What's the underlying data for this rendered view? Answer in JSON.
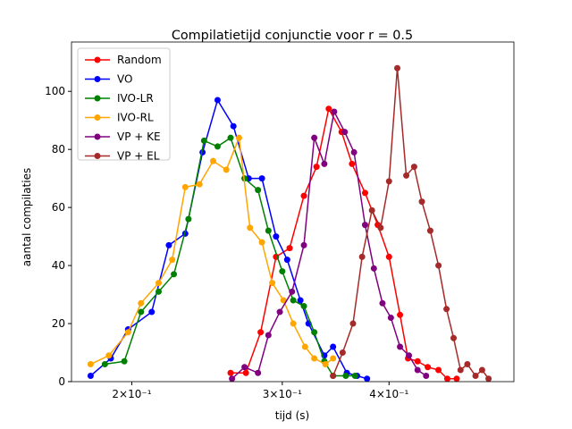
{
  "chart_data": {
    "type": "line",
    "title": "Compilatietijd conjunctie voor r = 0.5",
    "x_label": "tijd (s)",
    "y_label": "aantal compilaties",
    "xscale": "log",
    "xlim": [
      0.17,
      0.56
    ],
    "ylim": [
      0,
      117
    ],
    "xticks": [
      {
        "value": 0.2,
        "label": "2×10⁻¹"
      },
      {
        "value": 0.3,
        "label": "3×10⁻¹"
      },
      {
        "value": 0.4,
        "label": "4×10⁻¹"
      }
    ],
    "yticks": [
      0,
      20,
      40,
      60,
      80,
      100
    ],
    "legend": "upper left",
    "series": [
      {
        "name": "Random",
        "color": "#ff0000",
        "x": [
          0.261,
          0.272,
          0.283,
          0.295,
          0.306,
          0.318,
          0.329,
          0.34,
          0.352,
          0.362,
          0.375,
          0.388,
          0.4,
          0.412,
          0.421,
          0.432,
          0.444,
          0.457,
          0.468,
          0.48
        ],
        "values": [
          3,
          3,
          17,
          43,
          46,
          64,
          74,
          94,
          86,
          75,
          65,
          54,
          43,
          23,
          8,
          7,
          5,
          4,
          1,
          1
        ]
      },
      {
        "name": "VO",
        "color": "#0000ff",
        "x": [
          0.179,
          0.189,
          0.198,
          0.211,
          0.221,
          0.231,
          0.242,
          0.252,
          0.263,
          0.274,
          0.284,
          0.295,
          0.304,
          0.315,
          0.322,
          0.336,
          0.344,
          0.357,
          0.367,
          0.377
        ],
        "values": [
          2,
          8,
          18,
          24,
          47,
          51,
          79,
          97,
          88,
          70,
          70,
          50,
          42,
          28,
          20,
          9,
          12,
          3,
          2,
          1
        ]
      },
      {
        "name": "IVO-LR",
        "color": "#008000",
        "x": [
          0.186,
          0.196,
          0.205,
          0.215,
          0.224,
          0.233,
          0.243,
          0.252,
          0.261,
          0.271,
          0.281,
          0.289,
          0.3,
          0.309,
          0.318,
          0.327,
          0.336,
          0.344,
          0.356,
          0.365
        ],
        "values": [
          6,
          7,
          24,
          31,
          37,
          56,
          83,
          81,
          84,
          70,
          66,
          52,
          38,
          28,
          26,
          17,
          7,
          2,
          2,
          2
        ]
      },
      {
        "name": "IVO-RL",
        "color": "#ffa500",
        "x": [
          0.179,
          0.188,
          0.198,
          0.205,
          0.215,
          0.223,
          0.231,
          0.24,
          0.249,
          0.258,
          0.267,
          0.275,
          0.284,
          0.292,
          0.301,
          0.309,
          0.319,
          0.327,
          0.337,
          0.344
        ],
        "values": [
          6,
          9,
          17,
          27,
          34,
          42,
          67,
          68,
          76,
          73,
          84,
          53,
          48,
          34,
          28,
          20,
          12,
          8,
          6,
          8
        ]
      },
      {
        "name": "VP + KE",
        "color": "#800080",
        "x": [
          0.262,
          0.271,
          0.281,
          0.289,
          0.298,
          0.308,
          0.318,
          0.327,
          0.336,
          0.345,
          0.355,
          0.364,
          0.375,
          0.384,
          0.393,
          0.402,
          0.412,
          0.422,
          0.432,
          0.442
        ],
        "values": [
          1,
          5,
          3,
          16,
          24,
          31,
          47,
          84,
          75,
          93,
          86,
          79,
          54,
          39,
          27,
          22,
          12,
          9,
          4,
          2
        ]
      },
      {
        "name": "VP + EL",
        "color": "#a52a2a",
        "x": [
          0.344,
          0.353,
          0.363,
          0.372,
          0.382,
          0.391,
          0.4,
          0.409,
          0.419,
          0.428,
          0.437,
          0.447,
          0.457,
          0.467,
          0.476,
          0.485,
          0.494,
          0.505,
          0.514,
          0.523
        ],
        "values": [
          2,
          10,
          20,
          43,
          59,
          53,
          69,
          108,
          71,
          74,
          62,
          52,
          40,
          25,
          15,
          4,
          6,
          2,
          4,
          1
        ]
      }
    ]
  }
}
